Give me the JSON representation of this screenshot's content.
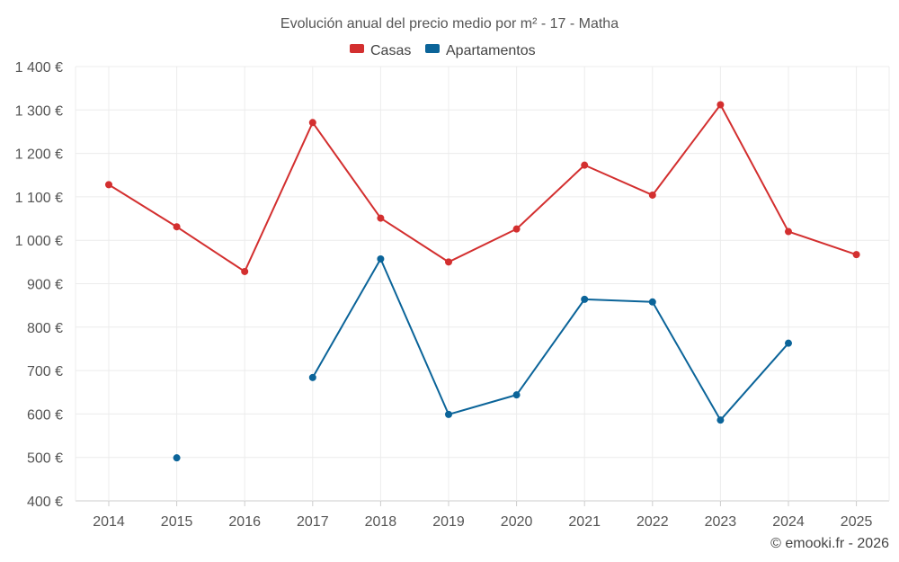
{
  "chart_data": {
    "type": "line",
    "title": "Evolución anual del precio medio por m² - 17 - Matha",
    "x": [
      "2014",
      "2015",
      "2016",
      "2017",
      "2018",
      "2019",
      "2020",
      "2021",
      "2022",
      "2023",
      "2024",
      "2025"
    ],
    "ylim": [
      400,
      1400
    ],
    "yticks": [
      400,
      500,
      600,
      700,
      800,
      900,
      1000,
      1100,
      1200,
      1300,
      1400
    ],
    "ytick_labels": [
      "400 €",
      "500 €",
      "600 €",
      "700 €",
      "800 €",
      "900 €",
      "1 000 €",
      "1 100 €",
      "1 200 €",
      "1 300 €",
      "1 400 €"
    ],
    "grid": true,
    "legend_position": "top-center",
    "series": [
      {
        "name": "Casas",
        "color": "#d32f2f",
        "values": [
          1128,
          1031,
          928,
          1271,
          1051,
          950,
          1026,
          1173,
          1104,
          1312,
          1020,
          967
        ]
      },
      {
        "name": "Apartamentos",
        "color": "#0b6499",
        "values": [
          null,
          499,
          null,
          684,
          957,
          599,
          644,
          864,
          858,
          586,
          763,
          null
        ]
      }
    ]
  },
  "credit": "© emooki.fr - 2026"
}
